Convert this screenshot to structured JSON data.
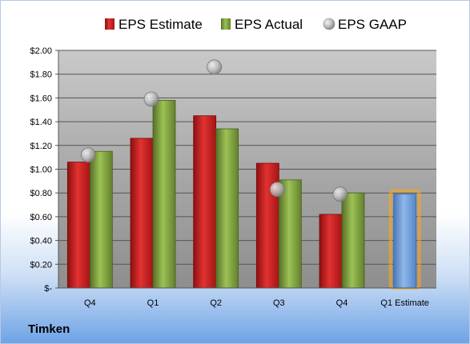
{
  "company": "Timken",
  "colors": {
    "estimate": "#c81d1d",
    "actual": "#7aa23a",
    "gaap": "#b0b0b0",
    "forecast": "#6f9fd8",
    "forecast_glow": "#f5a623"
  },
  "chart_data": {
    "type": "bar",
    "categories": [
      "Q4",
      "Q1",
      "Q2",
      "Q3",
      "Q4",
      "Q1 Estimate"
    ],
    "series": [
      {
        "name": "EPS Estimate",
        "values": [
          1.06,
          1.26,
          1.45,
          1.05,
          0.62,
          null
        ]
      },
      {
        "name": "EPS Actual",
        "values": [
          1.15,
          1.58,
          1.34,
          0.91,
          0.8,
          0.79
        ]
      },
      {
        "name": "EPS GAAP",
        "values": [
          1.12,
          1.59,
          1.86,
          0.83,
          0.79,
          null
        ]
      }
    ],
    "ylim": [
      0,
      2.0
    ],
    "yticks": [
      "$-",
      "$0.20",
      "$0.40",
      "$0.60",
      "$0.80",
      "$1.00",
      "$1.20",
      "$1.40",
      "$1.60",
      "$1.80",
      "$2.00"
    ],
    "legend": "top",
    "grid": true
  }
}
